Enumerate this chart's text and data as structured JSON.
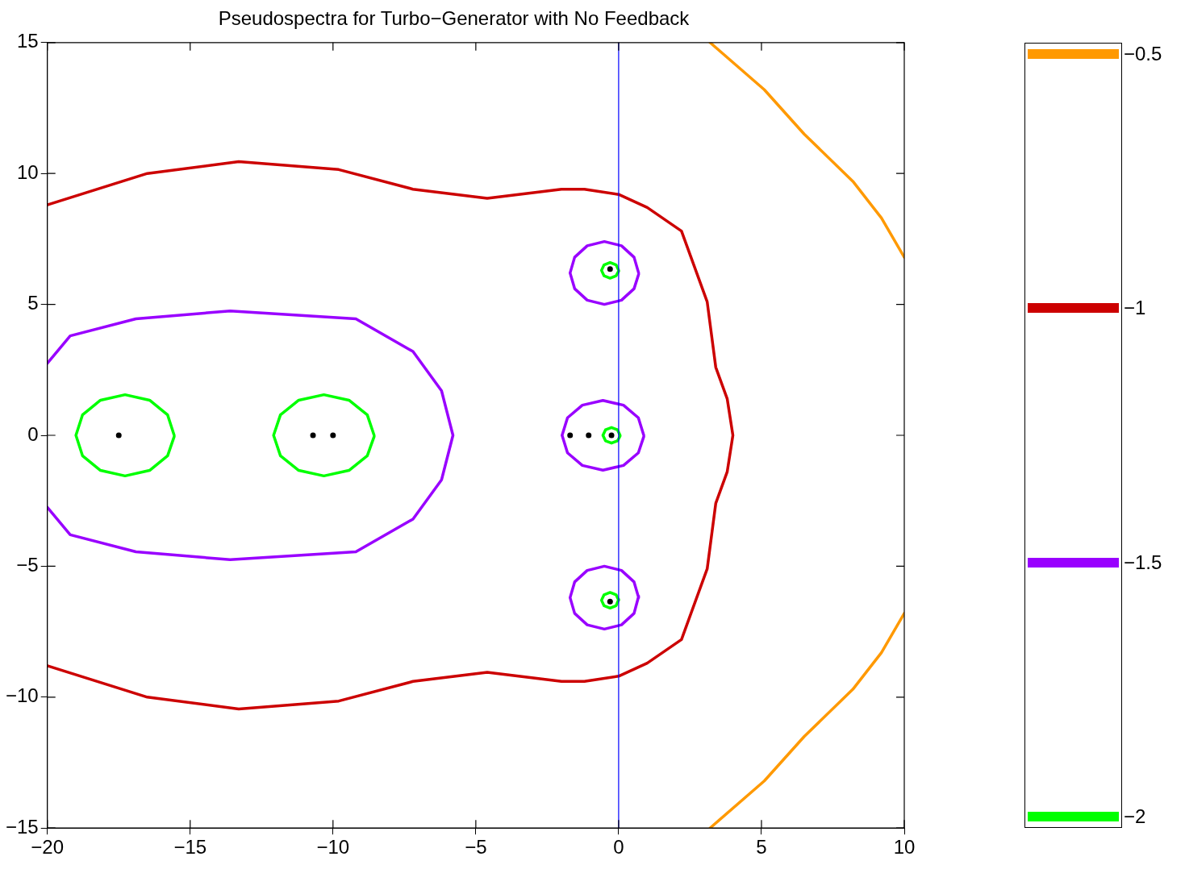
{
  "chart_data": {
    "type": "line",
    "title": "Pseudospectra for Turbo−Generator with No Feedback",
    "xlim": [
      -20,
      10
    ],
    "xticks": [
      {
        "value": -20,
        "label": "−20"
      },
      {
        "value": -15,
        "label": "−15"
      },
      {
        "value": -10,
        "label": "−10"
      },
      {
        "value": -5,
        "label": "−5"
      },
      0,
      5,
      10
    ],
    "ylim": [
      -15,
      15
    ],
    "yticks": [
      {
        "value": -15,
        "label": "−15"
      },
      {
        "value": -10,
        "label": "−10"
      },
      {
        "value": -5,
        "label": "−5"
      },
      0,
      5,
      10,
      15
    ],
    "grid": false,
    "legend": "right",
    "line_style": "solid",
    "ref_lines": [
      {
        "axis": "x",
        "value": 0,
        "color": "#0000ff"
      }
    ],
    "series": [
      {
        "name": "−0.5",
        "color": "#ff9900",
        "x": [
          3.2,
          5.1,
          6.5,
          8.2,
          9.2,
          10
        ],
        "values": [
          15,
          13.2,
          11.5,
          9.7,
          8.3,
          6.8
        ]
      },
      {
        "color": "#ff9900",
        "x": [
          10,
          9.2,
          8.2,
          6.5,
          5.1,
          3.2
        ],
        "values": [
          -6.8,
          -8.3,
          -9.7,
          -11.5,
          -13.2,
          -15
        ]
      },
      {
        "name": "−1",
        "color": "#cc0000",
        "x": [
          -20,
          -16.5,
          -13.3,
          -9.8,
          -7.2,
          -4.6,
          -2,
          -1.2,
          0,
          1,
          2.2,
          3.1,
          3.4,
          3.8,
          4,
          3.8,
          3.4,
          3.1,
          2.2,
          1,
          0,
          -1.2,
          -2,
          -4.6,
          -7.2,
          -9.8,
          -13.3,
          -16.5,
          -20
        ],
        "values": [
          8.8,
          10,
          10.45,
          10.15,
          9.4,
          9.05,
          9.4,
          9.4,
          9.2,
          8.7,
          7.8,
          5.1,
          2.6,
          1.4,
          0,
          -1.4,
          -2.6,
          -5.1,
          -7.8,
          -8.7,
          -9.2,
          -9.4,
          -9.4,
          -9.05,
          -9.4,
          -10.15,
          -10.45,
          -10,
          -8.8
        ]
      },
      {
        "name": "−1.5",
        "color": "#9900ff",
        "x": [
          -20,
          -19.2,
          -16.9,
          -13.6,
          -9.2,
          -7.2,
          -6.2,
          -5.8,
          -6.2,
          -7.2,
          -9.2,
          -13.6,
          -16.9,
          -19.2,
          -20
        ],
        "values": [
          2.75,
          3.8,
          4.45,
          4.75,
          4.45,
          3.2,
          1.7,
          0,
          -1.7,
          -3.2,
          -4.45,
          -4.75,
          -4.45,
          -3.8,
          -2.75
        ]
      },
      {
        "color": "#9900ff",
        "x": [
          0.7,
          0.54,
          0.1,
          -0.5,
          -1.1,
          -1.54,
          -1.7,
          -1.54,
          -1.1,
          -0.5,
          0.1,
          0.54,
          0.7
        ],
        "values": [
          6.2,
          6.8,
          7.24,
          7.4,
          7.24,
          6.8,
          6.2,
          5.6,
          5.16,
          5,
          5.16,
          5.6,
          6.15
        ]
      },
      {
        "color": "#9900ff",
        "x": [
          0.88,
          0.69,
          0.17,
          -0.55,
          -1.27,
          -1.79,
          -1.98,
          -1.79,
          -1.27,
          -0.55,
          0.17,
          0.69,
          0.88
        ],
        "values": [
          0,
          0.67,
          1.15,
          1.33,
          1.15,
          0.67,
          0,
          -0.67,
          -1.15,
          -1.33,
          -1.15,
          -0.67,
          -0.05
        ]
      },
      {
        "color": "#9900ff",
        "x": [
          0.7,
          0.54,
          0.1,
          -0.5,
          -1.1,
          -1.54,
          -1.7,
          -1.54,
          -1.1,
          -0.5,
          0.1,
          0.54,
          0.7
        ],
        "values": [
          -6.2,
          -5.6,
          -5.16,
          -5,
          -5.16,
          -5.6,
          -6.2,
          -6.8,
          -7.24,
          -7.4,
          -7.24,
          -6.8,
          -6.15
        ]
      },
      {
        "name": "−2",
        "color": "#00ff00",
        "x": [
          -15.56,
          -15.79,
          -16.42,
          -17.28,
          -18.14,
          -18.77,
          -19,
          -18.77,
          -18.14,
          -17.28,
          -16.42,
          -15.79,
          -15.56
        ],
        "values": [
          0,
          0.78,
          1.34,
          1.55,
          1.34,
          0.78,
          0,
          -0.78,
          -1.34,
          -1.55,
          -1.34,
          -0.78,
          -0.05
        ]
      },
      {
        "color": "#00ff00",
        "x": [
          -8.56,
          -8.8,
          -9.44,
          -10.32,
          -11.2,
          -11.84,
          -12.08,
          -11.84,
          -11.2,
          -10.32,
          -9.44,
          -8.8,
          -8.56
        ],
        "values": [
          0,
          0.78,
          1.34,
          1.55,
          1.34,
          0.78,
          0,
          -0.78,
          -1.34,
          -1.55,
          -1.34,
          -0.78,
          -0.05
        ]
      },
      {
        "color": "#00ff00",
        "x": [
          0,
          -0.09,
          -0.3,
          -0.51,
          -0.6,
          -0.51,
          -0.3,
          -0.09,
          0
        ],
        "values": [
          6.3,
          6.51,
          6.6,
          6.51,
          6.3,
          6.09,
          6,
          6.09,
          6.27
        ]
      },
      {
        "color": "#00ff00",
        "x": [
          0.05,
          -0.04,
          -0.25,
          -0.46,
          -0.55,
          -0.46,
          -0.25,
          -0.04,
          0.05
        ],
        "values": [
          0,
          0.21,
          0.3,
          0.21,
          0,
          -0.21,
          -0.3,
          -0.21,
          -0.03
        ]
      },
      {
        "color": "#00ff00",
        "x": [
          0,
          -0.09,
          -0.3,
          -0.51,
          -0.6,
          -0.51,
          -0.3,
          -0.09,
          0
        ],
        "values": [
          -6.3,
          -6.09,
          -6,
          -6.09,
          -6.3,
          -6.51,
          -6.6,
          -6.51,
          -6.27
        ]
      },
      {
        "type": "scatter",
        "marker": "circle",
        "color": "#000000",
        "x": [
          -17.5,
          -10.7,
          -10,
          -1.7,
          -1.05,
          -0.25,
          -0.3,
          -0.3
        ],
        "values": [
          0,
          0,
          0,
          0,
          0,
          0,
          6.35,
          -6.35
        ]
      }
    ]
  }
}
